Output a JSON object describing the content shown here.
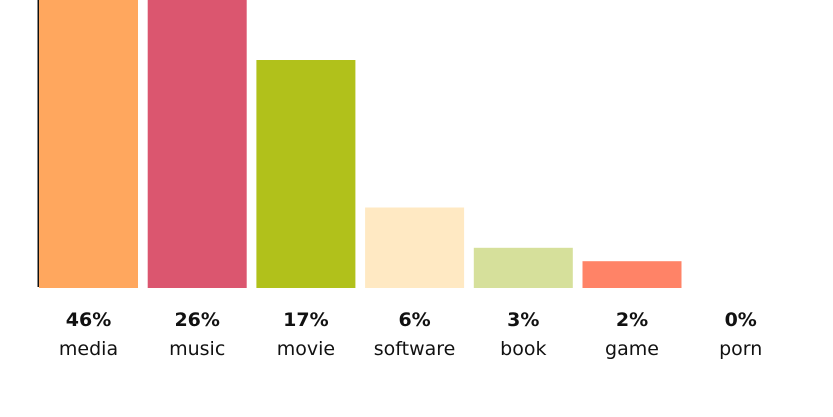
{
  "chart_data": {
    "type": "bar",
    "categories": [
      "media",
      "music",
      "movie",
      "software",
      "book",
      "game",
      "porn"
    ],
    "values": [
      46,
      26,
      17,
      6,
      3,
      2,
      0
    ],
    "value_labels": [
      "46%",
      "26%",
      "17%",
      "6%",
      "3%",
      "2%",
      "0%"
    ],
    "colors": [
      "#FFA75E",
      "#DB566F",
      "#B1C11B",
      "#FFE9C3",
      "#D6E09B",
      "#FF8367",
      "#FFFFFF"
    ],
    "ylim": [
      0,
      17
    ],
    "title": "",
    "xlabel": "",
    "ylabel": "",
    "grid": false,
    "legend": "none"
  }
}
